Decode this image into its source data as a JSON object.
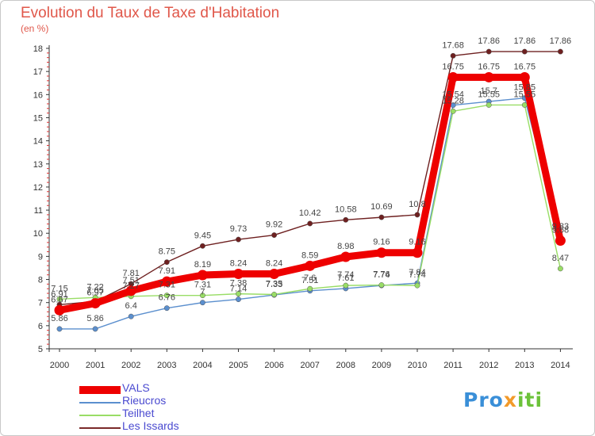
{
  "header": {
    "title": "Evolution du Taux de Taxe d'Habitation",
    "subtitle": "(en %)"
  },
  "legend": {
    "items": [
      {
        "label": "VALS",
        "color": "#ee0000"
      },
      {
        "label": "Rieucros",
        "color": "#5b8fce"
      },
      {
        "label": "Teilhet",
        "color": "#99dd66"
      },
      {
        "label": "Les Issards",
        "color": "#7a2a2a"
      }
    ]
  },
  "logo": {
    "parts": [
      {
        "text": "Pro",
        "color": "#3a8fd8"
      },
      {
        "text": "x",
        "color": "#f29a2a"
      },
      {
        "text": "iti",
        "color": "#6cc23a"
      }
    ]
  },
  "chart_data": {
    "type": "line",
    "title": "Evolution du Taux de Taxe d'Habitation",
    "subtitle": "(en %)",
    "x": [
      "2000",
      "2001",
      "2002",
      "2003",
      "2004",
      "2005",
      "2006",
      "2007",
      "2008",
      "2009",
      "2010",
      "2011",
      "2012",
      "2013",
      "2014"
    ],
    "ylim": [
      5,
      18
    ],
    "yticks": [
      5,
      6,
      7,
      8,
      9,
      10,
      11,
      12,
      13,
      14,
      15,
      16,
      17,
      18
    ],
    "grid": false,
    "legend_position": "bottom-left",
    "series": [
      {
        "name": "VALS",
        "color": "#ee0000",
        "values": [
          6.67,
          6.97,
          7.51,
          7.91,
          8.19,
          8.24,
          8.24,
          8.59,
          8.98,
          9.16,
          9.16,
          16.75,
          16.75,
          16.75,
          9.68
        ],
        "labels": [
          "6.67",
          "6.97",
          "7.51",
          "7.91",
          "8.19",
          "8.24",
          "8.24",
          "8.59",
          "8.98",
          "9.16",
          "9.16",
          "16.75",
          "16.75",
          "16.75",
          "9.68"
        ]
      },
      {
        "name": "Rieucros",
        "color": "#5b8fce",
        "values": [
          5.86,
          5.86,
          6.4,
          6.76,
          7.0,
          7.14,
          7.33,
          7.51,
          7.61,
          7.74,
          7.84,
          15.54,
          15.7,
          15.85,
          9.83
        ],
        "labels": [
          "5.86",
          "5.86",
          "6.4",
          "6.76",
          "7",
          "7.14",
          "7.33",
          "7.51",
          "7.61",
          "7.74",
          "7.84",
          "15.54",
          "15.7",
          "15.85",
          "9.83"
        ]
      },
      {
        "name": "Teilhet",
        "color": "#99dd66",
        "values": [
          7.15,
          7.22,
          7.27,
          7.31,
          7.31,
          7.38,
          7.35,
          7.6,
          7.74,
          7.76,
          7.74,
          15.28,
          15.55,
          15.55,
          8.47
        ],
        "labels": [
          "7.15",
          "7.22",
          "7.27",
          "7.31",
          "7.31",
          "7.38",
          "7.35",
          "7.6",
          "7.74",
          "7.76",
          "7.74",
          "15.28",
          "15.55",
          "15.55",
          "8.47"
        ]
      },
      {
        "name": "Les Issards",
        "color": "#6e2020",
        "values": [
          6.91,
          7.05,
          7.81,
          8.75,
          9.45,
          9.73,
          9.92,
          10.42,
          10.58,
          10.69,
          10.8,
          17.68,
          17.86,
          17.86,
          17.86
        ],
        "labels": [
          "6.91",
          "7.05",
          "7.81",
          "8.75",
          "9.45",
          "9.73",
          "9.92",
          "10.42",
          "10.58",
          "10.69",
          "10.8",
          "17.68",
          "17.86",
          "17.86",
          "17.86"
        ]
      }
    ]
  }
}
